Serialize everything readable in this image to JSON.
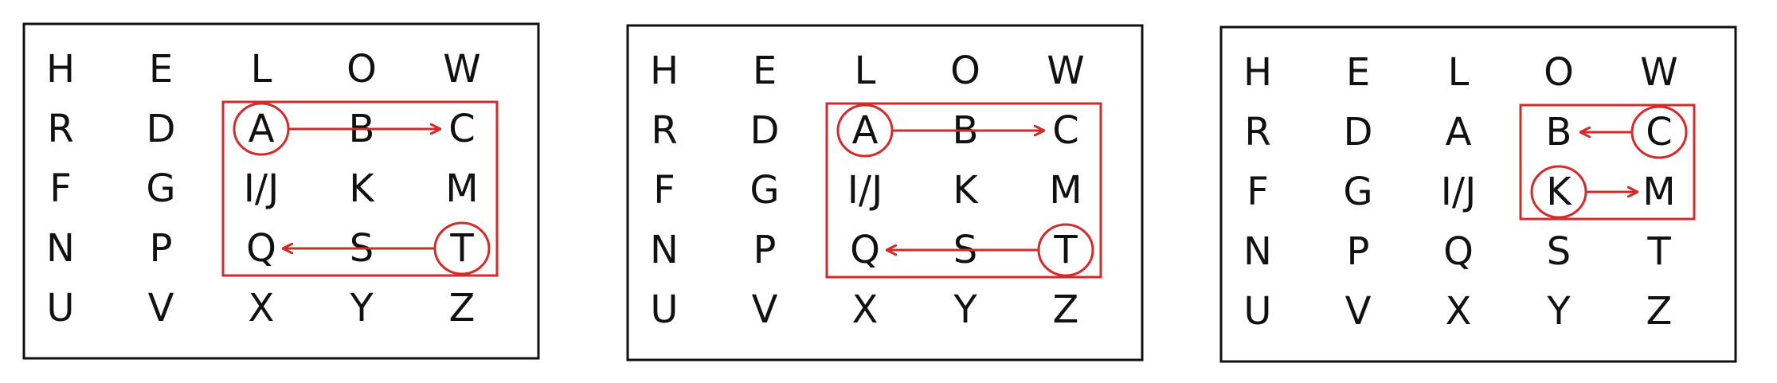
{
  "accent_color": "#d62a2a",
  "ink_color": "#111111",
  "panels": [
    {
      "grid": [
        [
          "H",
          "E",
          "L",
          "O",
          "W"
        ],
        [
          "R",
          "D",
          "A",
          "B",
          "C"
        ],
        [
          "F",
          "G",
          "I/J",
          "K",
          "M"
        ],
        [
          "N",
          "P",
          "Q",
          "S",
          "T"
        ],
        [
          "U",
          "V",
          "X",
          "Y",
          "Z"
        ]
      ],
      "highlight_region": {
        "rows": [
          1,
          3
        ],
        "cols": [
          2,
          4
        ]
      },
      "circled_cells": [
        [
          1,
          2
        ],
        [
          3,
          4
        ]
      ],
      "arrows": [
        {
          "from": [
            1,
            2
          ],
          "to": [
            1,
            4
          ]
        },
        {
          "from": [
            3,
            4
          ],
          "to": [
            3,
            2
          ]
        }
      ]
    },
    {
      "grid": [
        [
          "H",
          "E",
          "L",
          "O",
          "W"
        ],
        [
          "R",
          "D",
          "A",
          "B",
          "C"
        ],
        [
          "F",
          "G",
          "I/J",
          "K",
          "M"
        ],
        [
          "N",
          "P",
          "Q",
          "S",
          "T"
        ],
        [
          "U",
          "V",
          "X",
          "Y",
          "Z"
        ]
      ],
      "highlight_region": {
        "rows": [
          1,
          3
        ],
        "cols": [
          2,
          4
        ]
      },
      "circled_cells": [
        [
          1,
          2
        ],
        [
          3,
          4
        ]
      ],
      "arrows": [
        {
          "from": [
            1,
            2
          ],
          "to": [
            1,
            4
          ]
        },
        {
          "from": [
            3,
            4
          ],
          "to": [
            3,
            2
          ]
        }
      ]
    },
    {
      "grid": [
        [
          "H",
          "E",
          "L",
          "O",
          "W"
        ],
        [
          "R",
          "D",
          "A",
          "B",
          "C"
        ],
        [
          "F",
          "G",
          "I/J",
          "K",
          "M"
        ],
        [
          "N",
          "P",
          "Q",
          "S",
          "T"
        ],
        [
          "U",
          "V",
          "X",
          "Y",
          "Z"
        ]
      ],
      "highlight_region": {
        "rows": [
          1,
          2
        ],
        "cols": [
          3,
          4
        ]
      },
      "circled_cells": [
        [
          1,
          4
        ],
        [
          2,
          3
        ]
      ],
      "arrows": [
        {
          "from": [
            1,
            4
          ],
          "to": [
            1,
            3
          ]
        },
        {
          "from": [
            2,
            3
          ],
          "to": [
            2,
            4
          ]
        }
      ]
    }
  ]
}
